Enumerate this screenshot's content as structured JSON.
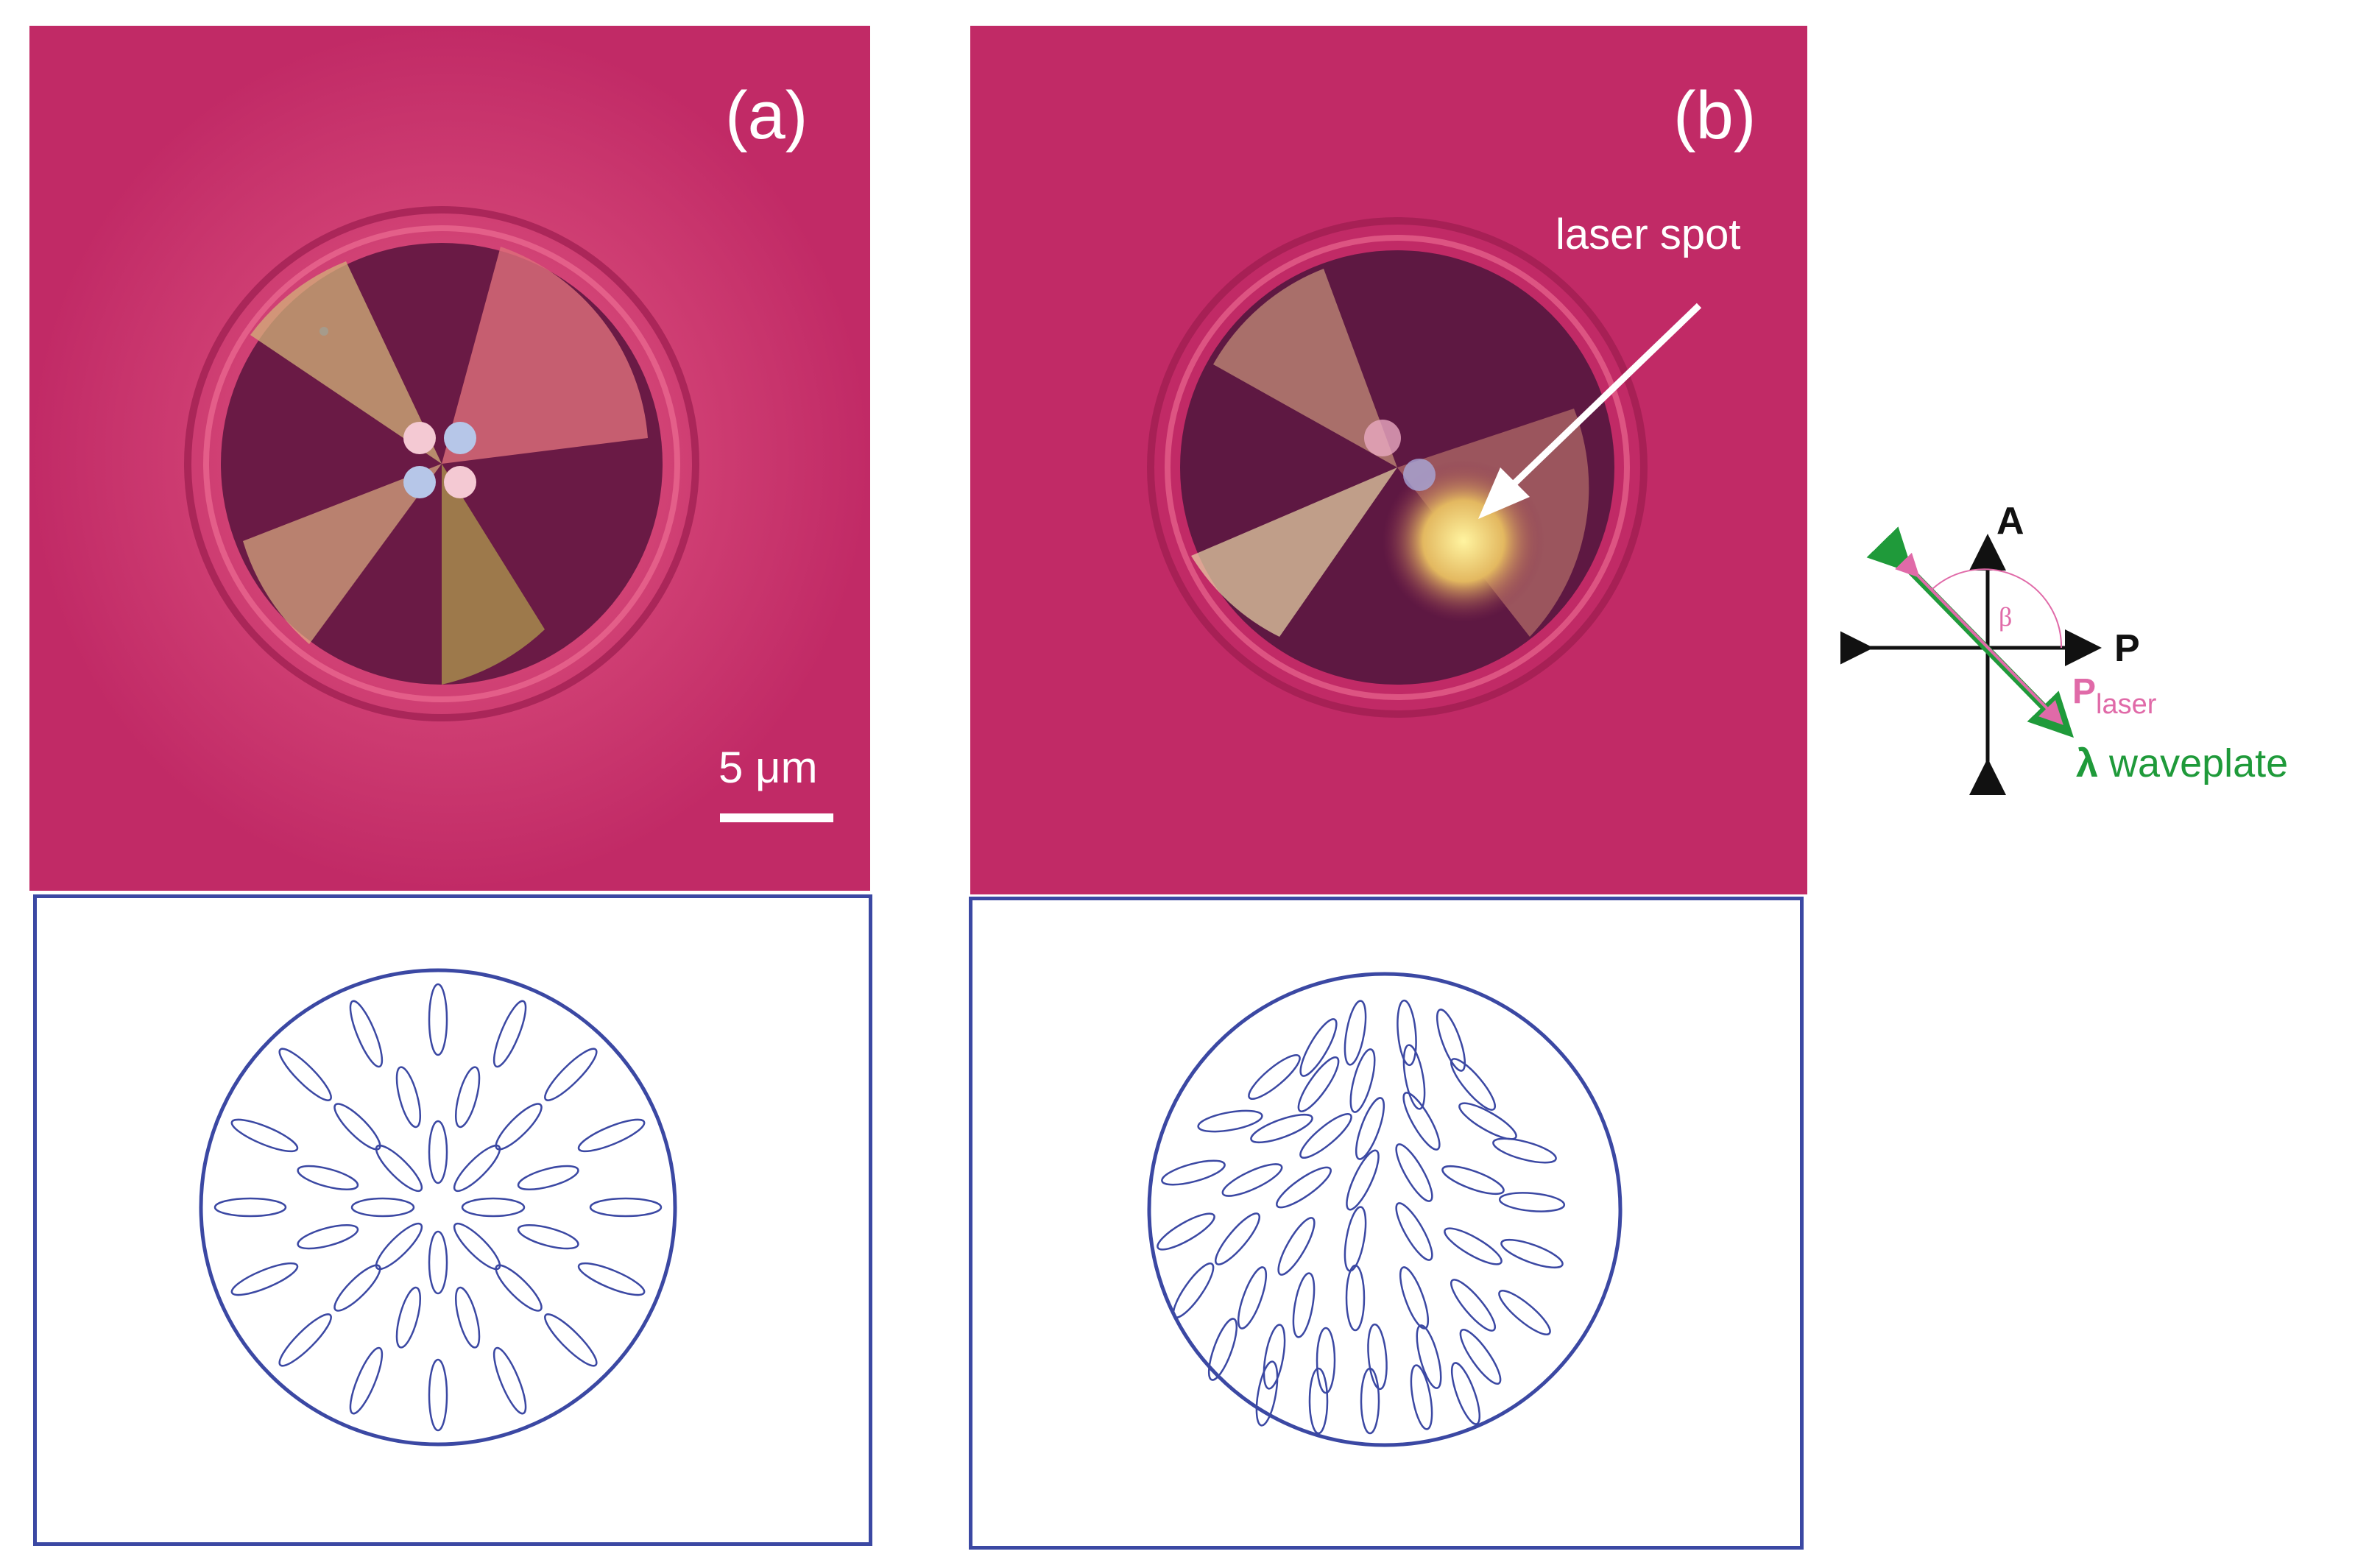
{
  "panels": [
    {
      "label": "(a)",
      "scale_bar_label": "5 μm",
      "scale_bar_length_um": 5
    },
    {
      "label": "(b)",
      "annotation": "laser spot"
    }
  ],
  "legend": {
    "analyzer": "A",
    "polarizer": "P",
    "laser_polarization_main": "P",
    "laser_polarization_sub": "laser",
    "angle": "β",
    "waveplate_symbol": "λ",
    "waveplate_text": " waveplate"
  },
  "colors": {
    "background_photo": "#c12a66",
    "schematic_stroke": "#3b48a3",
    "laser_arrow": "#e06aa8",
    "waveplate": "#1f9a3a",
    "axes": "#111111"
  },
  "schematics": {
    "a": {
      "director_configuration": "radial"
    },
    "b": {
      "director_configuration": "distorted"
    }
  }
}
